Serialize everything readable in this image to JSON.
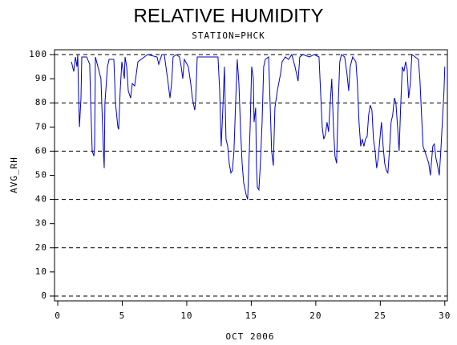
{
  "chart_data": {
    "type": "line",
    "title": "RELATIVE HUMIDITY",
    "subtitle": "STATION=PHCK",
    "xlabel": "OCT 2006",
    "ylabel": "AVG_RH",
    "xlim": [
      -0.25,
      30.2
    ],
    "ylim": [
      -2,
      102
    ],
    "xticks": [
      0,
      5,
      10,
      15,
      20,
      25,
      30
    ],
    "yticks": [
      0,
      10,
      20,
      30,
      40,
      50,
      60,
      70,
      80,
      90,
      100
    ],
    "gridlines": [
      0,
      20,
      40,
      60,
      80,
      100
    ],
    "series": [
      {
        "name": "AVG_RH",
        "color": "#0000cc",
        "x": [
          1.06,
          1.24,
          1.37,
          1.49,
          1.55,
          1.61,
          1.68,
          1.8,
          1.86,
          2.24,
          2.48,
          2.55,
          2.67,
          2.8,
          2.86,
          2.92,
          3.11,
          3.35,
          3.54,
          3.6,
          3.66,
          3.85,
          3.98,
          4.35,
          4.47,
          4.66,
          4.72,
          4.84,
          4.97,
          5.16,
          5.22,
          5.34,
          5.47,
          5.65,
          5.78,
          5.96,
          6.09,
          6.21,
          6.46,
          6.71,
          6.96,
          7.7,
          7.83,
          8.07,
          8.26,
          8.51,
          8.7,
          8.82,
          8.94,
          9.19,
          9.44,
          9.57,
          9.69,
          9.81,
          10.12,
          10.31,
          10.43,
          10.62,
          10.68,
          10.81,
          11.8,
          12.42,
          12.55,
          12.67,
          12.8,
          12.92,
          13.04,
          13.17,
          13.29,
          13.42,
          13.54,
          13.66,
          13.79,
          13.91,
          14.04,
          14.16,
          14.29,
          14.41,
          14.6,
          14.72,
          14.91,
          15.03,
          15.16,
          15.22,
          15.34,
          15.4,
          15.47,
          15.59,
          15.71,
          15.84,
          15.96,
          16.09,
          16.34,
          16.46,
          16.58,
          16.71,
          16.83,
          17.02,
          17.27,
          17.39,
          17.64,
          17.89,
          18.14,
          18.39,
          18.63,
          18.76,
          19.01,
          19.5,
          19.88,
          20.25,
          20.37,
          20.5,
          20.62,
          20.75,
          20.87,
          20.99,
          21.12,
          21.24,
          21.37,
          21.49,
          21.61,
          21.74,
          21.86,
          21.99,
          22.24,
          22.42,
          22.55,
          22.67,
          22.86,
          23.11,
          23.23,
          23.35,
          23.48,
          23.6,
          23.73,
          23.85,
          23.98,
          24.1,
          24.22,
          24.35,
          24.47,
          24.6,
          24.72,
          24.84,
          24.97,
          25.09,
          25.22,
          25.34,
          25.47,
          25.59,
          25.71,
          25.84,
          25.96,
          26.09,
          26.21,
          26.34,
          26.46,
          26.58,
          26.71,
          26.83,
          26.96,
          27.08,
          27.2,
          27.33,
          27.45,
          27.7,
          27.95,
          28.07,
          28.2,
          28.32,
          28.45,
          28.57,
          28.76,
          28.88,
          29.07,
          29.19,
          29.32,
          29.44,
          29.57,
          29.69,
          29.81,
          29.94,
          30.0
        ],
        "values": [
          97,
          93,
          99,
          95,
          100,
          84,
          70,
          82,
          99,
          99,
          96,
          80,
          60,
          58,
          62,
          99,
          95,
          90,
          60,
          53,
          80,
          95,
          98,
          98,
          80,
          70,
          69,
          85,
          97,
          90,
          99,
          95,
          85,
          82,
          88,
          87,
          92,
          97,
          98,
          99,
          100,
          99,
          96,
          100,
          100,
          90,
          82,
          88,
          99,
          100,
          99,
          95,
          90,
          98,
          95,
          88,
          82,
          77,
          80,
          99,
          99,
          99,
          85,
          62,
          78,
          95,
          65,
          62,
          55,
          51,
          52,
          60,
          80,
          98,
          88,
          70,
          55,
          47,
          42,
          40,
          70,
          95,
          90,
          72,
          78,
          55,
          45,
          44,
          55,
          72,
          95,
          98,
          99,
          80,
          60,
          54,
          78,
          85,
          92,
          97,
          99,
          98,
          100,
          95,
          89,
          99,
          100,
          99,
          100,
          99,
          85,
          70,
          65,
          67,
          72,
          68,
          80,
          90,
          70,
          58,
          55,
          80,
          97,
          100,
          99,
          92,
          85,
          95,
          99,
          97,
          88,
          72,
          62,
          65,
          62,
          65,
          66,
          75,
          79,
          77,
          65,
          60,
          53,
          57,
          65,
          72,
          62,
          55,
          52,
          51,
          60,
          72,
          75,
          82,
          80,
          70,
          60,
          78,
          95,
          93,
          97,
          94,
          82,
          88,
          100,
          99,
          98,
          90,
          75,
          62,
          60,
          58,
          55,
          50,
          62,
          63,
          57,
          54,
          50,
          60,
          72,
          85,
          95
        ]
      }
    ]
  }
}
